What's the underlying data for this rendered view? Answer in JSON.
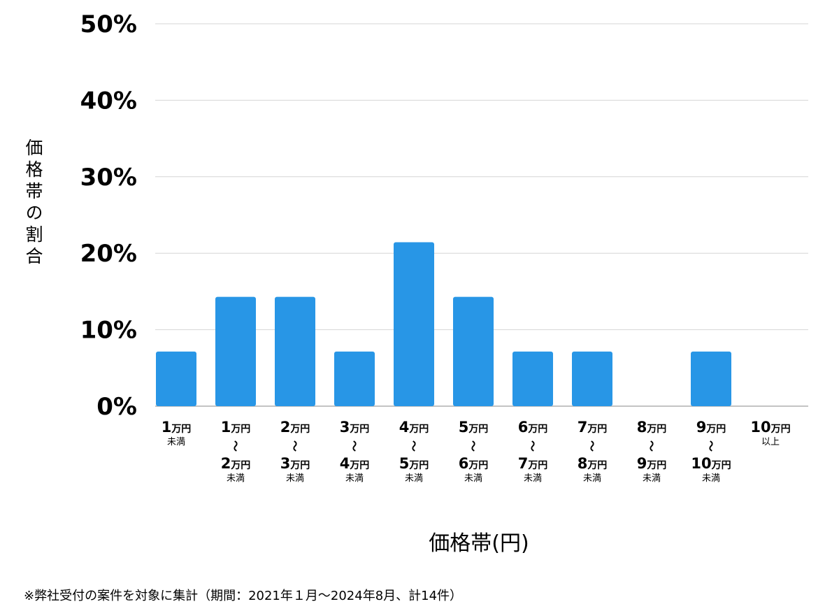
{
  "chart_data": {
    "type": "bar",
    "xlabel": "価格帯(円)",
    "ylabel": "価格帯の割合",
    "ylim": [
      0,
      50
    ],
    "yticks": [
      "0%",
      "10%",
      "20%",
      "30%",
      "40%",
      "50%"
    ],
    "grid": true,
    "bar_color": "#2896e6",
    "categories": [
      {
        "lines": [
          {
            "num": "1",
            "unit": "万円"
          },
          {
            "sub": "未満"
          }
        ]
      },
      {
        "lines": [
          {
            "num": "1",
            "unit": "万円"
          },
          {
            "tilde": "〜"
          },
          {
            "num": "2",
            "unit": "万円"
          },
          {
            "sub": "未満"
          }
        ]
      },
      {
        "lines": [
          {
            "num": "2",
            "unit": "万円"
          },
          {
            "tilde": "〜"
          },
          {
            "num": "3",
            "unit": "万円"
          },
          {
            "sub": "未満"
          }
        ]
      },
      {
        "lines": [
          {
            "num": "3",
            "unit": "万円"
          },
          {
            "tilde": "〜"
          },
          {
            "num": "4",
            "unit": "万円"
          },
          {
            "sub": "未満"
          }
        ]
      },
      {
        "lines": [
          {
            "num": "4",
            "unit": "万円"
          },
          {
            "tilde": "〜"
          },
          {
            "num": "5",
            "unit": "万円"
          },
          {
            "sub": "未満"
          }
        ]
      },
      {
        "lines": [
          {
            "num": "5",
            "unit": "万円"
          },
          {
            "tilde": "〜"
          },
          {
            "num": "6",
            "unit": "万円"
          },
          {
            "sub": "未満"
          }
        ]
      },
      {
        "lines": [
          {
            "num": "6",
            "unit": "万円"
          },
          {
            "tilde": "〜"
          },
          {
            "num": "7",
            "unit": "万円"
          },
          {
            "sub": "未満"
          }
        ]
      },
      {
        "lines": [
          {
            "num": "7",
            "unit": "万円"
          },
          {
            "tilde": "〜"
          },
          {
            "num": "8",
            "unit": "万円"
          },
          {
            "sub": "未満"
          }
        ]
      },
      {
        "lines": [
          {
            "num": "8",
            "unit": "万円"
          },
          {
            "tilde": "〜"
          },
          {
            "num": "9",
            "unit": "万円"
          },
          {
            "sub": "未満"
          }
        ]
      },
      {
        "lines": [
          {
            "num": "9",
            "unit": "万円"
          },
          {
            "tilde": "〜"
          },
          {
            "num": "10",
            "unit": "万円"
          },
          {
            "sub": "未満"
          }
        ]
      },
      {
        "lines": [
          {
            "num": "10",
            "unit": "万円"
          },
          {
            "sub": "以上"
          }
        ]
      }
    ],
    "values": [
      7.14,
      14.29,
      14.29,
      7.14,
      21.43,
      14.29,
      7.14,
      7.14,
      0,
      7.14,
      0
    ]
  },
  "footnote": "※弊社受付の案件を対象に集計（期間：2021年１月〜2024年8月、計14件）"
}
